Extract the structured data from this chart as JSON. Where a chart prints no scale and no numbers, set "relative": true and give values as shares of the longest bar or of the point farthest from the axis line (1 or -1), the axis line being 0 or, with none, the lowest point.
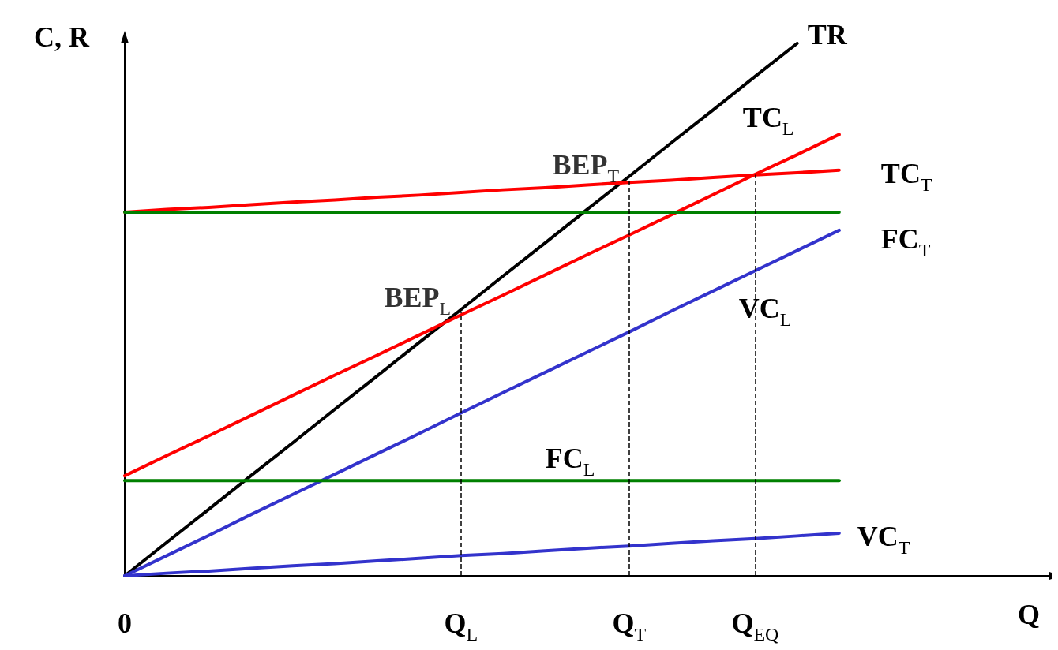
{
  "chart_data": {
    "type": "line",
    "relative": true,
    "xlabel": "Q",
    "ylabel": "C, R",
    "categories": [
      "0",
      null,
      null,
      null,
      null,
      null,
      null,
      null,
      "Q$_{L}$",
      null,
      null,
      null,
      "Q$_{T}$",
      null,
      null,
      "Q$_{EQ}$",
      null,
      null,
      null,
      null,
      null,
      null,
      null
    ],
    "series": [
      {
        "name": "TR",
        "color": "#000000",
        "values": [
          0,
          0.063,
          0.125,
          0.188,
          0.25,
          0.313,
          0.375,
          0.438,
          0.5,
          0.563,
          0.625,
          0.688,
          0.75,
          0.813,
          0.875,
          0.938,
          1,
          null,
          null,
          null,
          null,
          null,
          null
        ]
      },
      {
        "name": "TC$_{L}$",
        "color": "#ff0000",
        "values": [
          0.188,
          0.226,
          0.263,
          0.301,
          0.339,
          0.377,
          0.414,
          0.452,
          0.49,
          0.527,
          0.565,
          0.603,
          0.64,
          0.678,
          0.716,
          0.754,
          0.791,
          0.829,
          null,
          null,
          null,
          null,
          null
        ]
      },
      {
        "name": "TC$_{T}$",
        "color": "#ff0000",
        "values": [
          0.683,
          0.688,
          0.692,
          0.697,
          0.702,
          0.706,
          0.711,
          0.715,
          0.72,
          0.725,
          0.729,
          0.734,
          0.739,
          0.743,
          0.748,
          0.753,
          0.757,
          0.762,
          null,
          null,
          null,
          null,
          null
        ]
      },
      {
        "name": "FC$_{T}$",
        "color": "#008000",
        "values": [
          0.683,
          0.683,
          0.683,
          0.683,
          0.683,
          0.683,
          0.683,
          0.683,
          0.683,
          0.683,
          0.683,
          0.683,
          0.683,
          0.683,
          0.683,
          0.683,
          0.683,
          0.683,
          null,
          null,
          null,
          null,
          null
        ]
      },
      {
        "name": "VC$_{L}$",
        "color": "#3333cc",
        "values": [
          0,
          0.038,
          0.076,
          0.115,
          0.153,
          0.191,
          0.229,
          0.267,
          0.306,
          0.344,
          0.382,
          0.42,
          0.458,
          0.497,
          0.535,
          0.573,
          0.611,
          0.649,
          null,
          null,
          null,
          null,
          null
        ]
      },
      {
        "name": "FC$_{L}$",
        "color": "#008000",
        "values": [
          0.179,
          0.179,
          0.179,
          0.179,
          0.179,
          0.179,
          0.179,
          0.179,
          0.179,
          0.179,
          0.179,
          0.179,
          0.179,
          0.179,
          0.179,
          0.179,
          0.179,
          0.179,
          null,
          null,
          null,
          null,
          null
        ]
      },
      {
        "name": "VC$_{T}$",
        "color": "#3333cc",
        "values": [
          0,
          0.005,
          0.009,
          0.014,
          0.019,
          0.023,
          0.028,
          0.033,
          0.038,
          0.042,
          0.047,
          0.052,
          0.056,
          0.061,
          0.066,
          0.07,
          0.075,
          0.08,
          null,
          null,
          null,
          null,
          null
        ]
      }
    ],
    "annotations": [
      {
        "text": "BEP$_{L}$",
        "x": "Q$_{L}$",
        "y": 0.49
      },
      {
        "text": "BEP$_{T}$",
        "x": "Q$_{T}$",
        "y": 0.74
      }
    ],
    "ref_lines": [
      {
        "axis": "x",
        "value": "Q$_{L}$",
        "color": "#000000",
        "line_style": "dashed"
      },
      {
        "axis": "x",
        "value": "Q$_{T}$",
        "color": "#000000",
        "line_style": "dashed"
      },
      {
        "axis": "x",
        "value": "Q$_{EQ}$",
        "color": "#000000",
        "line_style": "dashed"
      }
    ],
    "grid": false,
    "legend": false,
    "marker": "none",
    "line_style": "solid"
  }
}
